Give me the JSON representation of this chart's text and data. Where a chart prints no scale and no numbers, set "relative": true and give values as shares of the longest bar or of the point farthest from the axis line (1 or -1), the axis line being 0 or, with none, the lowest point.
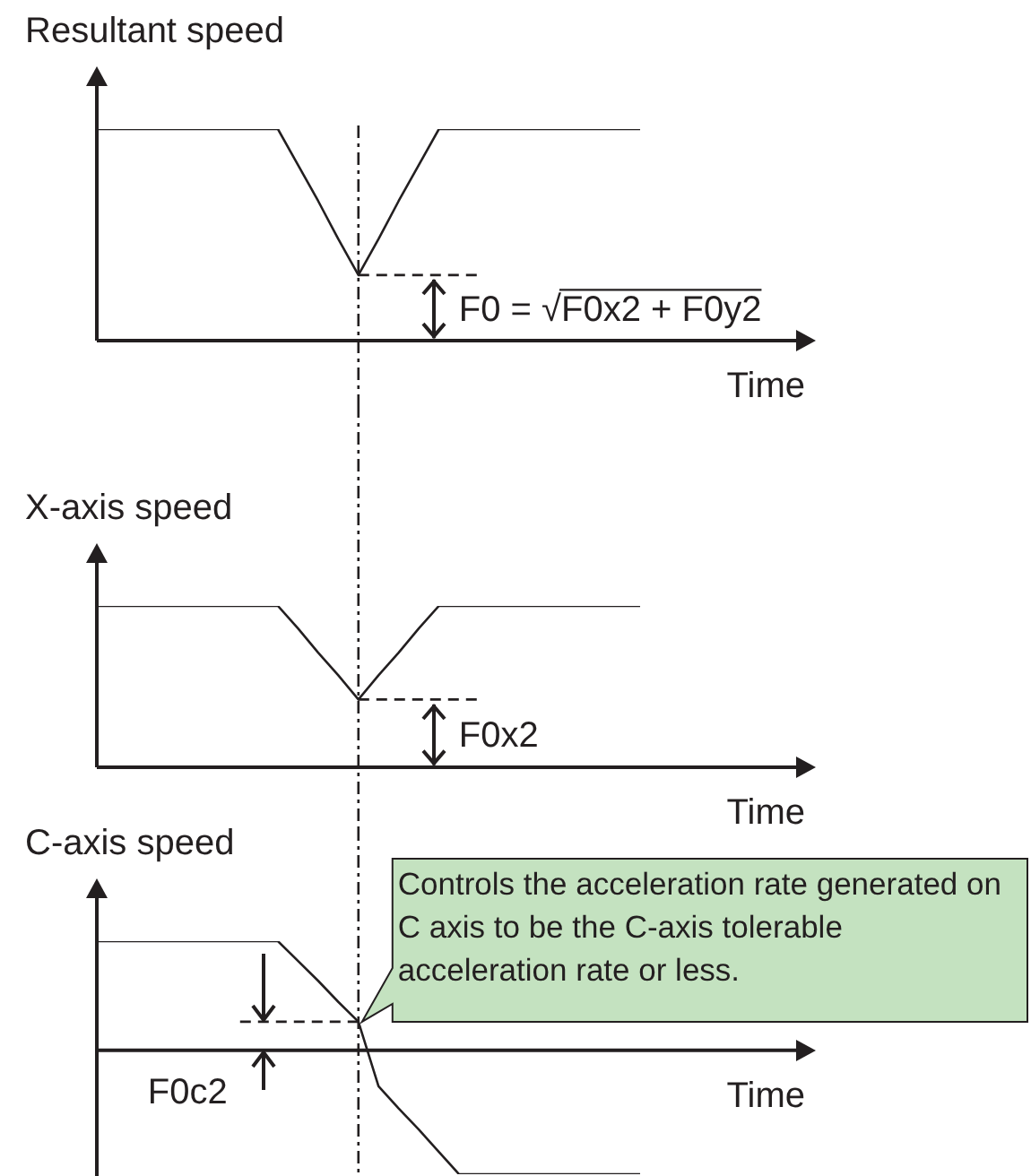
{
  "chart_data": [
    {
      "type": "line",
      "ylabel": "Resultant speed",
      "xlabel": "Time",
      "relative": true,
      "tick_labels": false,
      "marker": "none",
      "categories": [
        null,
        null,
        null,
        null,
        null,
        null,
        null,
        null,
        null,
        null,
        null,
        null,
        null,
        null,
        null,
        null,
        null,
        null,
        null,
        null,
        null,
        null,
        null,
        null,
        null,
        null,
        null,
        null
      ],
      "series": [
        {
          "color": "#231f20",
          "values": [
            1,
            1,
            1,
            1,
            1,
            1,
            1,
            1,
            1,
            1,
            0.83,
            0.66,
            0.48,
            0.31,
            0.48,
            0.66,
            0.83,
            1,
            1,
            1,
            1,
            1,
            1,
            1,
            1,
            1,
            1,
            1
          ]
        }
      ],
      "ref_lines": [
        {
          "axis": "y",
          "value": 0.31,
          "line_style": "dashed"
        }
      ],
      "annotations": [
        "F0 = √F0x2 + F0y2"
      ]
    },
    {
      "type": "line",
      "ylabel": "X-axis speed",
      "xlabel": "Time",
      "relative": true,
      "tick_labels": false,
      "marker": "none",
      "categories": [
        null,
        null,
        null,
        null,
        null,
        null,
        null,
        null,
        null,
        null,
        null,
        null,
        null,
        null,
        null,
        null,
        null,
        null,
        null,
        null,
        null,
        null,
        null,
        null,
        null,
        null,
        null,
        null
      ],
      "series": [
        {
          "color": "#231f20",
          "values": [
            1,
            1,
            1,
            1,
            1,
            1,
            1,
            1,
            1,
            1,
            0.86,
            0.71,
            0.57,
            0.42,
            0.57,
            0.71,
            0.86,
            1,
            1,
            1,
            1,
            1,
            1,
            1,
            1,
            1,
            1,
            1
          ]
        }
      ],
      "ref_lines": [
        {
          "axis": "y",
          "value": 0.42,
          "line_style": "dashed"
        }
      ],
      "annotations": [
        "F0x2"
      ]
    },
    {
      "type": "line",
      "ylabel": "C-axis speed",
      "xlabel": "Time",
      "relative": true,
      "tick_labels": false,
      "marker": "none",
      "categories": [
        null,
        null,
        null,
        null,
        null,
        null,
        null,
        null,
        null,
        null,
        null,
        null,
        null,
        null,
        null,
        null,
        null,
        null,
        null,
        null,
        null,
        null,
        null,
        null,
        null,
        null,
        null,
        null
      ],
      "series": [
        {
          "color": "#231f20",
          "values": [
            0.88,
            0.88,
            0.88,
            0.88,
            0.88,
            0.88,
            0.88,
            0.88,
            0.88,
            0.88,
            0.72,
            0.56,
            0.39,
            0.23,
            -0.29,
            -0.47,
            -0.64,
            -0.82,
            -1,
            -1,
            -1,
            -1,
            -1,
            -1,
            -1,
            -1,
            -1,
            -1
          ]
        }
      ],
      "ref_lines": [
        {
          "axis": "y",
          "value": 0.23,
          "line_style": "dashed"
        }
      ],
      "annotations": [
        "F0c2",
        "Controls the acceleration rate generated on C axis to be the C-axis tolerable acceleration rate or less."
      ]
    }
  ]
}
